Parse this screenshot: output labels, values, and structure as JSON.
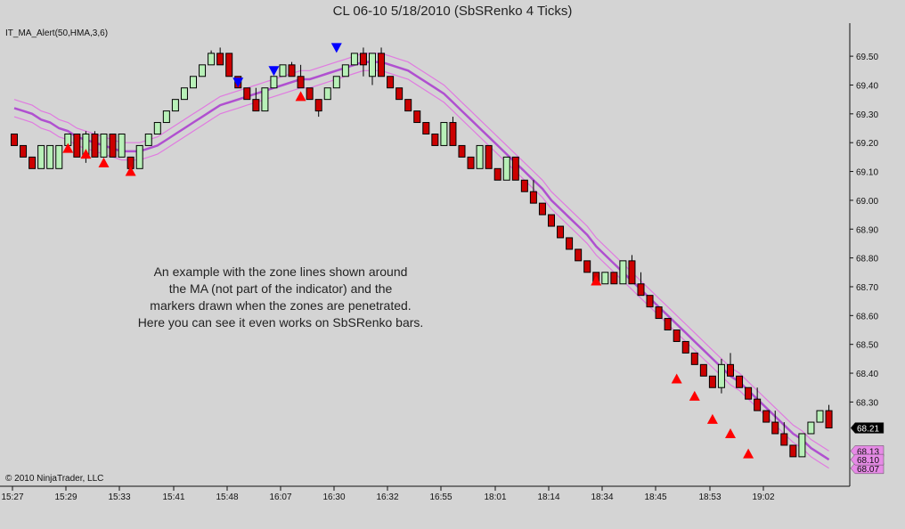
{
  "window": {
    "title": "CL 06-10  5/18/2010 (SbSRenko 4 Ticks)"
  },
  "indicator_label": "IT_MA_Alert(50,HMA,3,6)",
  "annotation": "An example with the zone lines shown around\nthe MA (not part of the indicator) and the\nmarkers drawn when the zones are penetrated.\nHere you can see it even works on SbSRenko bars.",
  "copyright": "© 2010 NinjaTrader, LLC",
  "colors": {
    "background": "#d4d4d4",
    "up_bar": "#b8f0b8",
    "down_bar": "#cc0000",
    "ma_line": "#b050d0",
    "zone_line": "#e07ae0",
    "marker_up": "#ff0000",
    "marker_down": "#0000ff",
    "last_price_bg": "#000000",
    "zone_label_bg": "#e68ae6"
  },
  "chart_data": {
    "type": "candlestick",
    "y_ticks": [
      "69.50",
      "69.40",
      "69.30",
      "69.20",
      "69.10",
      "69.00",
      "68.90",
      "68.80",
      "68.70",
      "68.60",
      "68.50",
      "68.40",
      "68.30"
    ],
    "ylim": [
      68.02,
      69.59
    ],
    "x_ticks": [
      "15:27",
      "15:29",
      "15:33",
      "15:41",
      "15:48",
      "16:07",
      "16:30",
      "16:32",
      "16:55",
      "18:01",
      "18:14",
      "18:34",
      "18:45",
      "18:53",
      "19:02"
    ],
    "price_labels": {
      "last": "68.21",
      "zone_upper": "68.13",
      "zone_mid": "68.10",
      "zone_lower": "68.07"
    },
    "bars": [
      {
        "o": 69.23,
        "c": 69.19,
        "h": 69.23,
        "l": 69.19
      },
      {
        "o": 69.19,
        "c": 69.15,
        "h": 69.19,
        "l": 69.15
      },
      {
        "o": 69.15,
        "c": 69.11,
        "h": 69.15,
        "l": 69.11
      },
      {
        "o": 69.11,
        "c": 69.19,
        "h": 69.19,
        "l": 69.11
      },
      {
        "o": 69.11,
        "c": 69.19,
        "h": 69.19,
        "l": 69.11
      },
      {
        "o": 69.11,
        "c": 69.19,
        "h": 69.19,
        "l": 69.11
      },
      {
        "o": 69.19,
        "c": 69.23,
        "h": 69.23,
        "l": 69.19
      },
      {
        "o": 69.23,
        "c": 69.15,
        "h": 69.23,
        "l": 69.15
      },
      {
        "o": 69.15,
        "c": 69.23,
        "h": 69.24,
        "l": 69.13
      },
      {
        "o": 69.23,
        "c": 69.15,
        "h": 69.24,
        "l": 69.15
      },
      {
        "o": 69.15,
        "c": 69.23,
        "h": 69.23,
        "l": 69.15
      },
      {
        "o": 69.23,
        "c": 69.15,
        "h": 69.23,
        "l": 69.15
      },
      {
        "o": 69.15,
        "c": 69.23,
        "h": 69.23,
        "l": 69.15
      },
      {
        "o": 69.15,
        "c": 69.11,
        "h": 69.15,
        "l": 69.11
      },
      {
        "o": 69.11,
        "c": 69.19,
        "h": 69.19,
        "l": 69.11
      },
      {
        "o": 69.19,
        "c": 69.23,
        "h": 69.23,
        "l": 69.19
      },
      {
        "o": 69.23,
        "c": 69.27,
        "h": 69.27,
        "l": 69.23
      },
      {
        "o": 69.27,
        "c": 69.31,
        "h": 69.31,
        "l": 69.27
      },
      {
        "o": 69.31,
        "c": 69.35,
        "h": 69.35,
        "l": 69.31
      },
      {
        "o": 69.35,
        "c": 69.39,
        "h": 69.39,
        "l": 69.35
      },
      {
        "o": 69.39,
        "c": 69.43,
        "h": 69.43,
        "l": 69.39
      },
      {
        "o": 69.43,
        "c": 69.47,
        "h": 69.47,
        "l": 69.43
      },
      {
        "o": 69.47,
        "c": 69.51,
        "h": 69.52,
        "l": 69.47
      },
      {
        "o": 69.51,
        "c": 69.47,
        "h": 69.53,
        "l": 69.47
      },
      {
        "o": 69.51,
        "c": 69.43,
        "h": 69.51,
        "l": 69.43
      },
      {
        "o": 69.43,
        "c": 69.39,
        "h": 69.43,
        "l": 69.39
      },
      {
        "o": 69.39,
        "c": 69.35,
        "h": 69.39,
        "l": 69.35
      },
      {
        "o": 69.35,
        "c": 69.31,
        "h": 69.39,
        "l": 69.31
      },
      {
        "o": 69.31,
        "c": 69.39,
        "h": 69.39,
        "l": 69.31
      },
      {
        "o": 69.39,
        "c": 69.43,
        "h": 69.43,
        "l": 69.39
      },
      {
        "o": 69.43,
        "c": 69.47,
        "h": 69.47,
        "l": 69.43
      },
      {
        "o": 69.47,
        "c": 69.43,
        "h": 69.48,
        "l": 69.43
      },
      {
        "o": 69.43,
        "c": 69.39,
        "h": 69.47,
        "l": 69.39
      },
      {
        "o": 69.39,
        "c": 69.35,
        "h": 69.39,
        "l": 69.35
      },
      {
        "o": 69.35,
        "c": 69.31,
        "h": 69.35,
        "l": 69.29
      },
      {
        "o": 69.35,
        "c": 69.39,
        "h": 69.39,
        "l": 69.35
      },
      {
        "o": 69.39,
        "c": 69.43,
        "h": 69.43,
        "l": 69.39
      },
      {
        "o": 69.43,
        "c": 69.47,
        "h": 69.47,
        "l": 69.43
      },
      {
        "o": 69.47,
        "c": 69.51,
        "h": 69.51,
        "l": 69.47
      },
      {
        "o": 69.51,
        "c": 69.47,
        "h": 69.53,
        "l": 69.43
      },
      {
        "o": 69.43,
        "c": 69.51,
        "h": 69.51,
        "l": 69.4
      },
      {
        "o": 69.51,
        "c": 69.43,
        "h": 69.53,
        "l": 69.43
      },
      {
        "o": 69.43,
        "c": 69.39,
        "h": 69.43,
        "l": 69.39
      },
      {
        "o": 69.39,
        "c": 69.35,
        "h": 69.39,
        "l": 69.35
      },
      {
        "o": 69.35,
        "c": 69.31,
        "h": 69.35,
        "l": 69.31
      },
      {
        "o": 69.31,
        "c": 69.27,
        "h": 69.31,
        "l": 69.27
      },
      {
        "o": 69.27,
        "c": 69.23,
        "h": 69.27,
        "l": 69.23
      },
      {
        "o": 69.23,
        "c": 69.19,
        "h": 69.23,
        "l": 69.19
      },
      {
        "o": 69.19,
        "c": 69.27,
        "h": 69.27,
        "l": 69.19
      },
      {
        "o": 69.27,
        "c": 69.19,
        "h": 69.29,
        "l": 69.19
      },
      {
        "o": 69.19,
        "c": 69.15,
        "h": 69.19,
        "l": 69.15
      },
      {
        "o": 69.15,
        "c": 69.11,
        "h": 69.15,
        "l": 69.11
      },
      {
        "o": 69.11,
        "c": 69.19,
        "h": 69.19,
        "l": 69.11
      },
      {
        "o": 69.19,
        "c": 69.11,
        "h": 69.19,
        "l": 69.11
      },
      {
        "o": 69.11,
        "c": 69.07,
        "h": 69.11,
        "l": 69.07
      },
      {
        "o": 69.07,
        "c": 69.15,
        "h": 69.15,
        "l": 69.07
      },
      {
        "o": 69.15,
        "c": 69.07,
        "h": 69.15,
        "l": 69.07
      },
      {
        "o": 69.07,
        "c": 69.03,
        "h": 69.07,
        "l": 69.03
      },
      {
        "o": 69.03,
        "c": 68.99,
        "h": 69.07,
        "l": 68.99
      },
      {
        "o": 68.99,
        "c": 68.95,
        "h": 68.99,
        "l": 68.95
      },
      {
        "o": 68.95,
        "c": 68.91,
        "h": 68.95,
        "l": 68.91
      },
      {
        "o": 68.91,
        "c": 68.87,
        "h": 68.91,
        "l": 68.87
      },
      {
        "o": 68.87,
        "c": 68.83,
        "h": 68.87,
        "l": 68.83
      },
      {
        "o": 68.83,
        "c": 68.79,
        "h": 68.83,
        "l": 68.79
      },
      {
        "o": 68.79,
        "c": 68.75,
        "h": 68.79,
        "l": 68.75
      },
      {
        "o": 68.75,
        "c": 68.71,
        "h": 68.75,
        "l": 68.71
      },
      {
        "o": 68.71,
        "c": 68.75,
        "h": 68.75,
        "l": 68.71
      },
      {
        "o": 68.75,
        "c": 68.71,
        "h": 68.75,
        "l": 68.71
      },
      {
        "o": 68.71,
        "c": 68.79,
        "h": 68.79,
        "l": 68.71
      },
      {
        "o": 68.79,
        "c": 68.71,
        "h": 68.81,
        "l": 68.71
      },
      {
        "o": 68.71,
        "c": 68.67,
        "h": 68.75,
        "l": 68.67
      },
      {
        "o": 68.67,
        "c": 68.63,
        "h": 68.67,
        "l": 68.63
      },
      {
        "o": 68.63,
        "c": 68.59,
        "h": 68.63,
        "l": 68.59
      },
      {
        "o": 68.59,
        "c": 68.55,
        "h": 68.59,
        "l": 68.55
      },
      {
        "o": 68.55,
        "c": 68.51,
        "h": 68.55,
        "l": 68.51
      },
      {
        "o": 68.51,
        "c": 68.47,
        "h": 68.51,
        "l": 68.47
      },
      {
        "o": 68.47,
        "c": 68.43,
        "h": 68.47,
        "l": 68.43
      },
      {
        "o": 68.43,
        "c": 68.39,
        "h": 68.43,
        "l": 68.39
      },
      {
        "o": 68.39,
        "c": 68.35,
        "h": 68.39,
        "l": 68.35
      },
      {
        "o": 68.35,
        "c": 68.43,
        "h": 68.45,
        "l": 68.33
      },
      {
        "o": 68.43,
        "c": 68.39,
        "h": 68.47,
        "l": 68.39
      },
      {
        "o": 68.39,
        "c": 68.35,
        "h": 68.39,
        "l": 68.35
      },
      {
        "o": 68.35,
        "c": 68.31,
        "h": 68.35,
        "l": 68.31
      },
      {
        "o": 68.31,
        "c": 68.27,
        "h": 68.35,
        "l": 68.27
      },
      {
        "o": 68.27,
        "c": 68.23,
        "h": 68.27,
        "l": 68.23
      },
      {
        "o": 68.23,
        "c": 68.19,
        "h": 68.27,
        "l": 68.19
      },
      {
        "o": 68.19,
        "c": 68.15,
        "h": 68.23,
        "l": 68.15
      },
      {
        "o": 68.15,
        "c": 68.11,
        "h": 68.15,
        "l": 68.11
      },
      {
        "o": 68.11,
        "c": 68.19,
        "h": 68.19,
        "l": 68.11
      },
      {
        "o": 68.19,
        "c": 68.23,
        "h": 68.23,
        "l": 68.19
      },
      {
        "o": 68.23,
        "c": 68.27,
        "h": 68.27,
        "l": 68.23
      },
      {
        "o": 68.27,
        "c": 68.21,
        "h": 68.29,
        "l": 68.21
      }
    ],
    "ma": [
      69.32,
      69.31,
      69.3,
      69.28,
      69.27,
      69.25,
      69.24,
      69.22,
      69.21,
      69.2,
      69.19,
      69.18,
      69.17,
      69.17,
      69.17,
      69.18,
      69.19,
      69.21,
      69.23,
      69.25,
      69.27,
      69.29,
      69.31,
      69.33,
      69.34,
      69.35,
      69.36,
      69.37,
      69.38,
      69.39,
      69.4,
      69.41,
      69.42,
      69.42,
      69.43,
      69.44,
      69.45,
      69.46,
      69.47,
      69.48,
      69.48,
      69.48,
      69.47,
      69.46,
      69.45,
      69.43,
      69.41,
      69.39,
      69.37,
      69.34,
      69.31,
      69.28,
      69.25,
      69.22,
      69.19,
      69.16,
      69.13,
      69.1,
      69.07,
      69.04,
      69.0,
      68.97,
      68.94,
      68.91,
      68.88,
      68.84,
      68.81,
      68.78,
      68.75,
      68.72,
      68.69,
      68.66,
      68.63,
      68.6,
      68.57,
      68.54,
      68.51,
      68.48,
      68.45,
      68.42,
      68.39,
      68.37,
      68.34,
      68.31,
      68.28,
      68.25,
      68.22,
      68.19,
      68.17,
      68.14,
      68.12,
      68.1
    ],
    "zone_width": 0.03,
    "markers": [
      {
        "bar": 6,
        "dir": "up",
        "price": 69.18
      },
      {
        "bar": 8,
        "dir": "up",
        "price": 69.16
      },
      {
        "bar": 10,
        "dir": "up",
        "price": 69.13
      },
      {
        "bar": 13,
        "dir": "up",
        "price": 69.1
      },
      {
        "bar": 25,
        "dir": "down",
        "price": 69.41
      },
      {
        "bar": 29,
        "dir": "down",
        "price": 69.45
      },
      {
        "bar": 32,
        "dir": "up",
        "price": 69.36
      },
      {
        "bar": 36,
        "dir": "down",
        "price": 69.53
      },
      {
        "bar": 65,
        "dir": "up",
        "price": 68.72
      },
      {
        "bar": 74,
        "dir": "up",
        "price": 68.38
      },
      {
        "bar": 76,
        "dir": "up",
        "price": 68.32
      },
      {
        "bar": 78,
        "dir": "up",
        "price": 68.24
      },
      {
        "bar": 80,
        "dir": "up",
        "price": 68.19
      },
      {
        "bar": 82,
        "dir": "up",
        "price": 68.12
      }
    ]
  }
}
